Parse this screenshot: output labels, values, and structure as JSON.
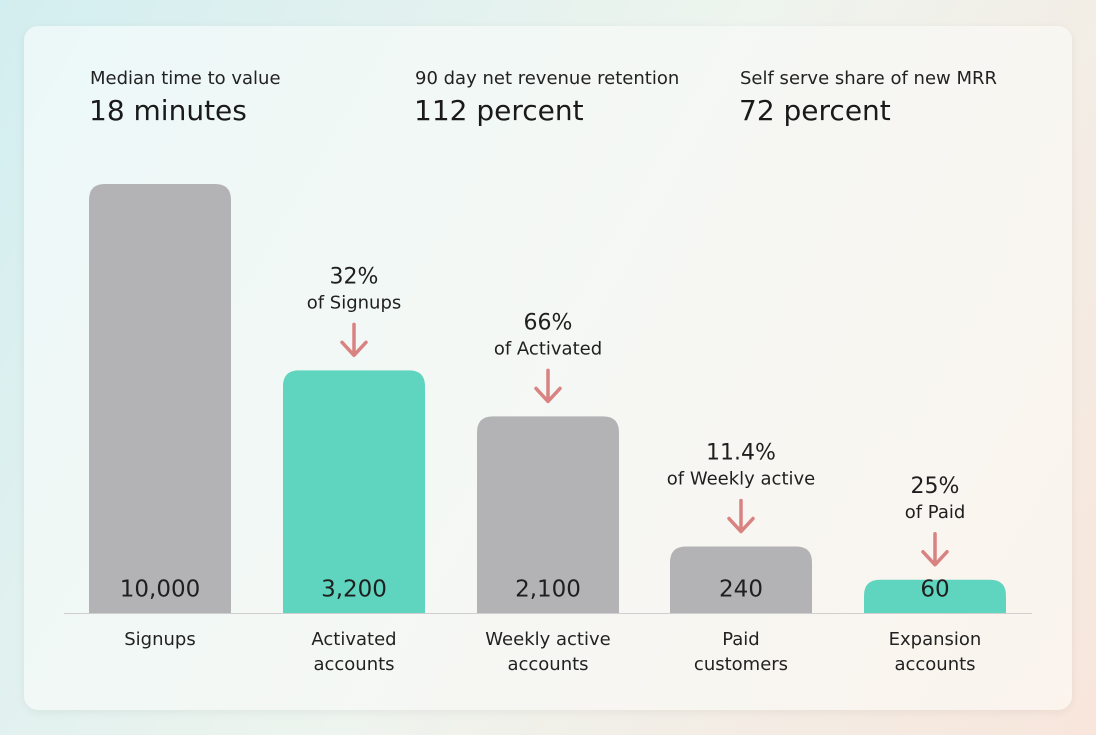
{
  "kpis": [
    {
      "label": "Median time to value",
      "value": "18 minutes"
    },
    {
      "label": "90 day net revenue retention",
      "value": "112 percent"
    },
    {
      "label": "Self serve share of new MRR",
      "value": "72 percent"
    }
  ],
  "chart_data": {
    "type": "bar",
    "categories": [
      "Signups",
      "Activated\naccounts",
      "Weekly active\naccounts",
      "Paid\ncustomers",
      "Expansion\naccounts"
    ],
    "values": [
      10000,
      3200,
      2100,
      240,
      60
    ],
    "value_labels": [
      "10,000",
      "3,200",
      "2,100",
      "240",
      "60"
    ],
    "colors": [
      "#b3b3b6",
      "#5fd5bf",
      "#b3b3b6",
      "#b3b3b6",
      "#5fd5bf"
    ],
    "conversions": [
      null,
      32,
      66,
      11.4,
      25
    ],
    "conversion_labels": [
      null,
      "32%",
      "66%",
      "11.4%",
      "25%"
    ],
    "conversion_notes": [
      null,
      "of Signups",
      "of Activated",
      "of Weekly active",
      "of Paid"
    ],
    "arrow_color": "#d98282"
  }
}
